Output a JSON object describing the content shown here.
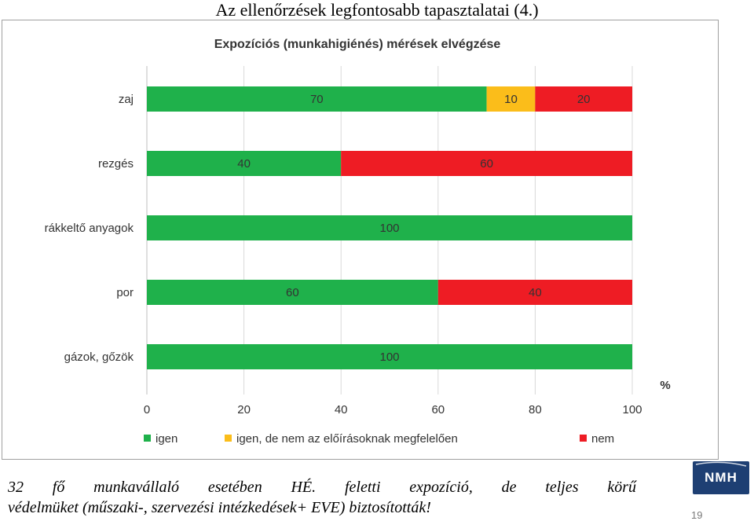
{
  "slide": {
    "title": "Az ellenőrzések legfontosabb tapasztalatai (4.)",
    "footer_line1": "32 fő munkavállaló esetében HÉ. feletti expozíció, de teljes körű",
    "footer_line2": "védelmüket (műszaki-, szervezési intézkedések+ EVE) biztosították!",
    "logo_text": "NMH",
    "page_number": "19"
  },
  "chart_data": {
    "type": "bar",
    "orientation": "horizontal",
    "stacked": true,
    "title": "Expozíciós (munkahigiénés) mérések elvégzése",
    "unit_label": "%",
    "categories": [
      "zaj",
      "rezgés",
      "rákkeltő anyagok",
      "por",
      "gázok, gőzök"
    ],
    "series": [
      {
        "name": "igen",
        "color": "#1fb14b",
        "values": [
          70,
          40,
          100,
          60,
          100
        ]
      },
      {
        "name": "igen, de nem az előírásoknak megfelelően",
        "color": "#fbbd1a",
        "values": [
          10,
          0,
          0,
          0,
          0
        ]
      },
      {
        "name": "nem",
        "color": "#ee1c24",
        "values": [
          20,
          60,
          0,
          40,
          0
        ]
      }
    ],
    "xlim": [
      0,
      100
    ],
    "xticks": [
      "0",
      "20",
      "40",
      "60",
      "80",
      "100"
    ],
    "grid": true,
    "legend_position": "bottom"
  }
}
